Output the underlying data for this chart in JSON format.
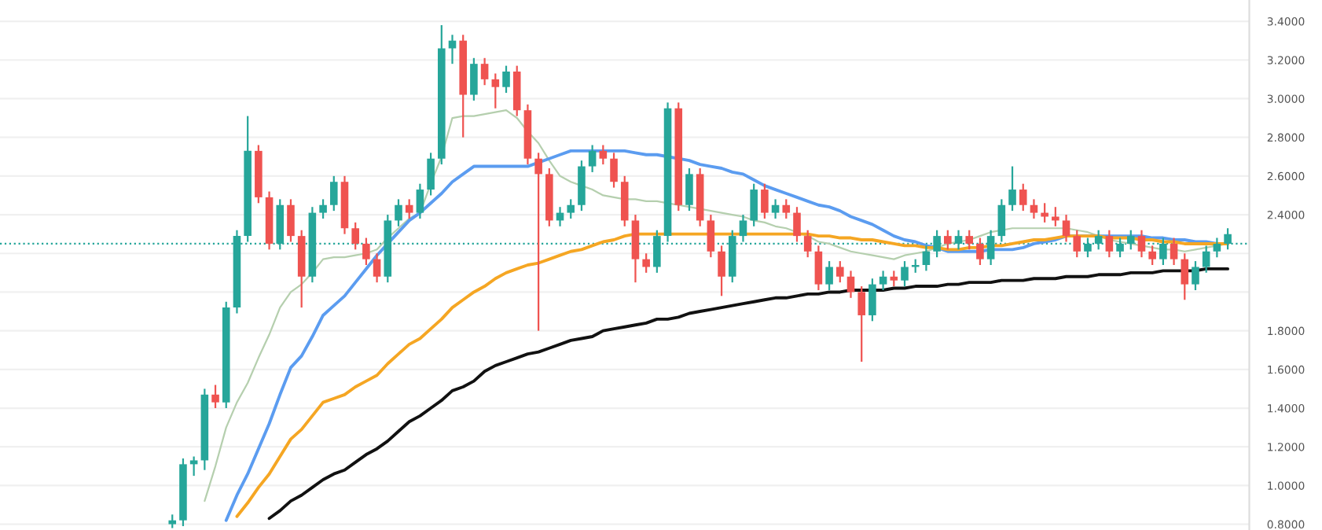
{
  "chart_data": {
    "type": "candlestick",
    "categories": [
      null,
      null,
      null,
      null,
      null,
      null,
      null,
      null,
      null,
      null,
      null,
      null,
      null,
      null,
      null,
      null,
      null,
      null,
      null,
      null,
      null,
      null,
      null,
      null,
      null,
      null,
      null,
      null,
      null,
      null,
      null,
      null,
      null,
      null,
      null,
      null,
      null,
      null,
      null,
      null,
      null,
      null,
      null,
      null,
      null,
      null,
      null,
      null,
      null,
      null,
      null,
      null,
      null,
      null,
      null,
      null,
      null,
      null,
      null,
      null,
      null,
      null,
      null,
      null,
      null,
      null,
      null,
      null,
      null,
      null,
      null,
      null,
      null,
      null,
      null,
      null,
      null,
      null,
      null,
      null,
      null,
      null,
      null,
      null,
      null,
      null,
      null,
      null,
      null,
      null,
      null,
      null,
      null,
      null,
      null,
      null,
      null,
      null,
      null
    ],
    "ohlc": [
      [
        0.8,
        0.85,
        0.78,
        0.82
      ],
      [
        0.82,
        1.14,
        0.79,
        1.11
      ],
      [
        1.11,
        1.15,
        1.05,
        1.13
      ],
      [
        1.13,
        1.5,
        1.08,
        1.47
      ],
      [
        1.47,
        1.52,
        1.4,
        1.43
      ],
      [
        1.43,
        1.95,
        1.4,
        1.92
      ],
      [
        1.92,
        2.32,
        1.89,
        2.29
      ],
      [
        2.29,
        2.91,
        2.26,
        2.73
      ],
      [
        2.73,
        2.76,
        2.46,
        2.49
      ],
      [
        2.49,
        2.52,
        2.22,
        2.25
      ],
      [
        2.25,
        2.48,
        2.22,
        2.45
      ],
      [
        2.45,
        2.48,
        2.26,
        2.29
      ],
      [
        2.29,
        2.32,
        1.92,
        2.08
      ],
      [
        2.08,
        2.44,
        2.05,
        2.41
      ],
      [
        2.41,
        2.48,
        2.38,
        2.45
      ],
      [
        2.45,
        2.6,
        2.42,
        2.57
      ],
      [
        2.57,
        2.6,
        2.3,
        2.33
      ],
      [
        2.33,
        2.36,
        2.22,
        2.25
      ],
      [
        2.25,
        2.28,
        2.14,
        2.17
      ],
      [
        2.17,
        2.2,
        2.05,
        2.08
      ],
      [
        2.08,
        2.4,
        2.05,
        2.37
      ],
      [
        2.37,
        2.48,
        2.34,
        2.45
      ],
      [
        2.45,
        2.48,
        2.38,
        2.41
      ],
      [
        2.41,
        2.56,
        2.38,
        2.53
      ],
      [
        2.53,
        2.72,
        2.5,
        2.69
      ],
      [
        2.69,
        3.38,
        2.66,
        3.26
      ],
      [
        3.26,
        3.33,
        3.18,
        3.3
      ],
      [
        3.3,
        3.33,
        2.8,
        3.02
      ],
      [
        3.02,
        3.21,
        2.99,
        3.18
      ],
      [
        3.18,
        3.21,
        3.07,
        3.1
      ],
      [
        3.1,
        3.13,
        2.95,
        3.06
      ],
      [
        3.06,
        3.17,
        3.03,
        3.14
      ],
      [
        3.14,
        3.17,
        2.91,
        2.94
      ],
      [
        2.94,
        2.97,
        2.66,
        2.69
      ],
      [
        2.69,
        2.72,
        1.8,
        2.61
      ],
      [
        2.61,
        2.64,
        2.34,
        2.37
      ],
      [
        2.37,
        2.44,
        2.34,
        2.41
      ],
      [
        2.41,
        2.48,
        2.38,
        2.45
      ],
      [
        2.45,
        2.68,
        2.42,
        2.65
      ],
      [
        2.65,
        2.76,
        2.62,
        2.73
      ],
      [
        2.73,
        2.76,
        2.66,
        2.69
      ],
      [
        2.69,
        2.72,
        2.54,
        2.57
      ],
      [
        2.57,
        2.6,
        2.34,
        2.37
      ],
      [
        2.37,
        2.4,
        2.05,
        2.17
      ],
      [
        2.17,
        2.2,
        2.1,
        2.13
      ],
      [
        2.13,
        2.32,
        2.1,
        2.29
      ],
      [
        2.29,
        2.98,
        2.26,
        2.95
      ],
      [
        2.95,
        2.98,
        2.42,
        2.45
      ],
      [
        2.45,
        2.64,
        2.42,
        2.61
      ],
      [
        2.61,
        2.64,
        2.34,
        2.37
      ],
      [
        2.37,
        2.4,
        2.18,
        2.21
      ],
      [
        2.21,
        2.24,
        1.98,
        2.08
      ],
      [
        2.08,
        2.32,
        2.05,
        2.29
      ],
      [
        2.29,
        2.4,
        2.26,
        2.37
      ],
      [
        2.37,
        2.56,
        2.34,
        2.53
      ],
      [
        2.53,
        2.56,
        2.38,
        2.41
      ],
      [
        2.41,
        2.48,
        2.38,
        2.45
      ],
      [
        2.45,
        2.48,
        2.38,
        2.41
      ],
      [
        2.41,
        2.44,
        2.26,
        2.29
      ],
      [
        2.29,
        2.32,
        2.18,
        2.21
      ],
      [
        2.21,
        2.24,
        2.01,
        2.04
      ],
      [
        2.04,
        2.16,
        2.01,
        2.13
      ],
      [
        2.13,
        2.16,
        2.05,
        2.08
      ],
      [
        2.08,
        2.11,
        1.97,
        2.0
      ],
      [
        2.0,
        2.03,
        1.64,
        1.88
      ],
      [
        1.88,
        2.07,
        1.85,
        2.04
      ],
      [
        2.04,
        2.11,
        2.01,
        2.08
      ],
      [
        2.08,
        2.11,
        2.03,
        2.06
      ],
      [
        2.06,
        2.16,
        2.03,
        2.13
      ],
      [
        2.13,
        2.17,
        2.1,
        2.14
      ],
      [
        2.14,
        2.24,
        2.11,
        2.21
      ],
      [
        2.21,
        2.32,
        2.18,
        2.29
      ],
      [
        2.29,
        2.32,
        2.22,
        2.25
      ],
      [
        2.25,
        2.32,
        2.22,
        2.29
      ],
      [
        2.29,
        2.32,
        2.22,
        2.25
      ],
      [
        2.25,
        2.28,
        2.14,
        2.17
      ],
      [
        2.17,
        2.32,
        2.14,
        2.29
      ],
      [
        2.29,
        2.48,
        2.26,
        2.45
      ],
      [
        2.45,
        2.65,
        2.42,
        2.53
      ],
      [
        2.53,
        2.56,
        2.42,
        2.45
      ],
      [
        2.45,
        2.48,
        2.38,
        2.41
      ],
      [
        2.41,
        2.46,
        2.36,
        2.39
      ],
      [
        2.39,
        2.44,
        2.34,
        2.37
      ],
      [
        2.37,
        2.4,
        2.26,
        2.29
      ],
      [
        2.29,
        2.32,
        2.18,
        2.21
      ],
      [
        2.21,
        2.28,
        2.18,
        2.25
      ],
      [
        2.25,
        2.32,
        2.22,
        2.29
      ],
      [
        2.29,
        2.32,
        2.18,
        2.21
      ],
      [
        2.21,
        2.28,
        2.18,
        2.25
      ],
      [
        2.25,
        2.32,
        2.22,
        2.29
      ],
      [
        2.29,
        2.32,
        2.18,
        2.21
      ],
      [
        2.21,
        2.24,
        2.14,
        2.17
      ],
      [
        2.17,
        2.28,
        2.14,
        2.25
      ],
      [
        2.25,
        2.28,
        2.14,
        2.17
      ],
      [
        2.17,
        2.2,
        1.96,
        2.04
      ],
      [
        2.04,
        2.16,
        2.01,
        2.13
      ],
      [
        2.13,
        2.24,
        2.1,
        2.21
      ],
      [
        2.21,
        2.28,
        2.18,
        2.25
      ],
      [
        2.25,
        2.33,
        2.22,
        2.3
      ]
    ],
    "colors": [
      "#26a69a",
      "#26a69a",
      "#26a69a",
      "#26a69a",
      "#ef5350",
      "#26a69a",
      "#26a69a",
      "#26a69a",
      "#ef5350",
      "#ef5350",
      "#26a69a",
      "#ef5350",
      "#ef5350",
      "#26a69a",
      "#26a69a",
      "#26a69a",
      "#ef5350",
      "#ef5350",
      "#ef5350",
      "#ef5350",
      "#26a69a",
      "#26a69a",
      "#ef5350",
      "#26a69a",
      "#26a69a",
      "#26a69a",
      "#26a69a",
      "#ef5350",
      "#26a69a",
      "#ef5350",
      "#ef5350",
      "#26a69a",
      "#ef5350",
      "#ef5350",
      "#ef5350",
      "#ef5350",
      "#26a69a",
      "#26a69a",
      "#26a69a",
      "#26a69a",
      "#ef5350",
      "#ef5350",
      "#ef5350",
      "#ef5350",
      "#ef5350",
      "#26a69a",
      "#26a69a",
      "#ef5350",
      "#26a69a",
      "#ef5350",
      "#ef5350",
      "#ef5350",
      "#26a69a",
      "#26a69a",
      "#26a69a",
      "#ef5350",
      "#26a69a",
      "#ef5350",
      "#ef5350",
      "#ef5350",
      "#ef5350",
      "#26a69a",
      "#ef5350",
      "#ef5350",
      "#ef5350",
      "#26a69a",
      "#26a69a",
      "#ef5350",
      "#26a69a",
      "#26a69a",
      "#26a69a",
      "#26a69a",
      "#ef5350",
      "#26a69a",
      "#ef5350",
      "#ef5350",
      "#26a69a",
      "#26a69a",
      "#26a69a",
      "#ef5350",
      "#ef5350",
      "#ef5350",
      "#ef5350",
      "#ef5350",
      "#ef5350",
      "#26a69a",
      "#26a69a",
      "#ef5350",
      "#26a69a",
      "#26a69a",
      "#ef5350",
      "#ef5350",
      "#26a69a",
      "#ef5350",
      "#ef5350",
      "#26a69a",
      "#26a69a",
      "#26a69a",
      "#26a69a"
    ],
    "series": [
      {
        "type": "line",
        "color": "#b5cfae",
        "values": [
          null,
          null,
          null,
          0.92,
          1.1,
          1.3,
          1.43,
          1.53,
          1.66,
          1.78,
          1.92,
          2.0,
          2.04,
          2.1,
          2.17,
          2.18,
          2.18,
          2.19,
          2.2,
          2.22,
          2.28,
          2.33,
          2.38,
          2.41,
          2.56,
          2.7,
          2.9,
          2.91,
          2.91,
          2.92,
          2.93,
          2.94,
          2.9,
          2.83,
          2.77,
          2.68,
          2.6,
          2.57,
          2.55,
          2.53,
          2.5,
          2.49,
          2.48,
          2.48,
          2.47,
          2.47,
          2.46,
          2.45,
          2.44,
          2.43,
          2.42,
          2.41,
          2.4,
          2.39,
          2.37,
          2.36,
          2.34,
          2.33,
          2.31,
          2.29,
          2.26,
          2.25,
          2.23,
          2.21,
          2.2,
          2.19,
          2.18,
          2.17,
          2.19,
          2.2,
          2.21,
          2.23,
          2.25,
          2.26,
          2.27,
          2.29,
          2.31,
          2.32,
          2.33,
          2.33,
          2.33,
          2.33,
          2.33,
          2.33,
          2.32,
          2.31,
          2.29,
          2.27,
          2.26,
          2.25,
          2.24,
          2.23,
          2.22,
          2.22,
          2.21,
          2.22,
          2.23,
          2.24,
          2.25
        ]
      },
      {
        "type": "line",
        "color": "#5b9cf0",
        "values": [
          null,
          null,
          null,
          null,
          null,
          0.82,
          0.95,
          1.06,
          1.19,
          1.32,
          1.47,
          1.61,
          1.67,
          1.77,
          1.88,
          1.93,
          1.98,
          2.05,
          2.12,
          2.19,
          2.25,
          2.31,
          2.37,
          2.41,
          2.46,
          2.51,
          2.57,
          2.61,
          2.65,
          2.65,
          2.65,
          2.65,
          2.65,
          2.65,
          2.67,
          2.69,
          2.71,
          2.73,
          2.73,
          2.73,
          2.73,
          2.73,
          2.73,
          2.72,
          2.71,
          2.71,
          2.7,
          2.69,
          2.68,
          2.66,
          2.65,
          2.64,
          2.62,
          2.61,
          2.58,
          2.55,
          2.53,
          2.51,
          2.49,
          2.47,
          2.45,
          2.44,
          2.42,
          2.39,
          2.37,
          2.35,
          2.32,
          2.29,
          2.27,
          2.26,
          2.24,
          2.23,
          2.21,
          2.21,
          2.21,
          2.21,
          2.22,
          2.22,
          2.22,
          2.23,
          2.25,
          2.26,
          2.27,
          2.29,
          2.29,
          2.29,
          2.29,
          2.29,
          2.29,
          2.29,
          2.29,
          2.28,
          2.28,
          2.27,
          2.27,
          2.26,
          2.26,
          2.25,
          2.25
        ]
      },
      {
        "type": "line",
        "color": "#f5a623",
        "values": [
          null,
          null,
          null,
          null,
          null,
          null,
          0.84,
          0.91,
          0.99,
          1.06,
          1.15,
          1.24,
          1.29,
          1.36,
          1.43,
          1.45,
          1.47,
          1.51,
          1.54,
          1.57,
          1.63,
          1.68,
          1.73,
          1.76,
          1.81,
          1.86,
          1.92,
          1.96,
          2.0,
          2.03,
          2.07,
          2.1,
          2.12,
          2.14,
          2.15,
          2.17,
          2.19,
          2.21,
          2.22,
          2.24,
          2.26,
          2.27,
          2.29,
          2.3,
          2.3,
          2.3,
          2.3,
          2.3,
          2.3,
          2.3,
          2.3,
          2.3,
          2.3,
          2.3,
          2.3,
          2.3,
          2.3,
          2.3,
          2.3,
          2.3,
          2.29,
          2.29,
          2.28,
          2.28,
          2.27,
          2.27,
          2.26,
          2.25,
          2.24,
          2.24,
          2.23,
          2.23,
          2.22,
          2.22,
          2.23,
          2.23,
          2.24,
          2.24,
          2.25,
          2.26,
          2.27,
          2.27,
          2.28,
          2.29,
          2.29,
          2.29,
          2.29,
          2.28,
          2.28,
          2.28,
          2.27,
          2.27,
          2.26,
          2.26,
          2.25,
          2.25,
          2.25,
          2.25,
          2.25
        ]
      },
      {
        "type": "line",
        "color": "#111111",
        "values": [
          null,
          null,
          null,
          null,
          null,
          null,
          null,
          null,
          null,
          0.83,
          0.87,
          0.92,
          0.95,
          0.99,
          1.03,
          1.06,
          1.08,
          1.12,
          1.16,
          1.19,
          1.23,
          1.28,
          1.33,
          1.36,
          1.4,
          1.44,
          1.49,
          1.51,
          1.54,
          1.59,
          1.62,
          1.64,
          1.66,
          1.68,
          1.69,
          1.71,
          1.73,
          1.75,
          1.76,
          1.77,
          1.8,
          1.81,
          1.82,
          1.83,
          1.84,
          1.86,
          1.86,
          1.87,
          1.89,
          1.9,
          1.91,
          1.92,
          1.93,
          1.94,
          1.95,
          1.96,
          1.97,
          1.97,
          1.98,
          1.99,
          1.99,
          2.0,
          2.0,
          2.01,
          2.01,
          2.01,
          2.01,
          2.02,
          2.02,
          2.03,
          2.03,
          2.03,
          2.04,
          2.04,
          2.05,
          2.05,
          2.05,
          2.06,
          2.06,
          2.06,
          2.07,
          2.07,
          2.07,
          2.08,
          2.08,
          2.08,
          2.09,
          2.09,
          2.09,
          2.1,
          2.1,
          2.1,
          2.11,
          2.11,
          2.11,
          2.11,
          2.12,
          2.12,
          2.12
        ]
      }
    ],
    "ylim": [
      0.77,
      3.51
    ],
    "yticks": [
      {
        "value": 0.8,
        "label": "0.8000"
      },
      {
        "value": 1.0,
        "label": "1.0000"
      },
      {
        "value": 1.2,
        "label": "1.2000"
      },
      {
        "value": 1.4,
        "label": "1.4000"
      },
      {
        "value": 1.6,
        "label": "1.6000"
      },
      {
        "value": 1.8,
        "label": "1.8000"
      },
      {
        "value": 2.0,
        "label": null
      },
      {
        "value": 2.2,
        "label": null
      },
      {
        "value": 2.4,
        "label": "2.4000"
      },
      {
        "value": 2.6,
        "label": "2.6000"
      },
      {
        "value": 2.8,
        "label": "2.8000"
      },
      {
        "value": 3.0,
        "label": "3.0000"
      },
      {
        "value": 3.2,
        "label": "3.2000"
      },
      {
        "value": 3.4,
        "label": "3.4000"
      }
    ],
    "grid": "y",
    "tick_labels": "y",
    "ref_lines": [
      {
        "axis": "y",
        "value": 2.25,
        "label": null,
        "color": "#26a69a",
        "line_style": "dotted"
      }
    ]
  }
}
